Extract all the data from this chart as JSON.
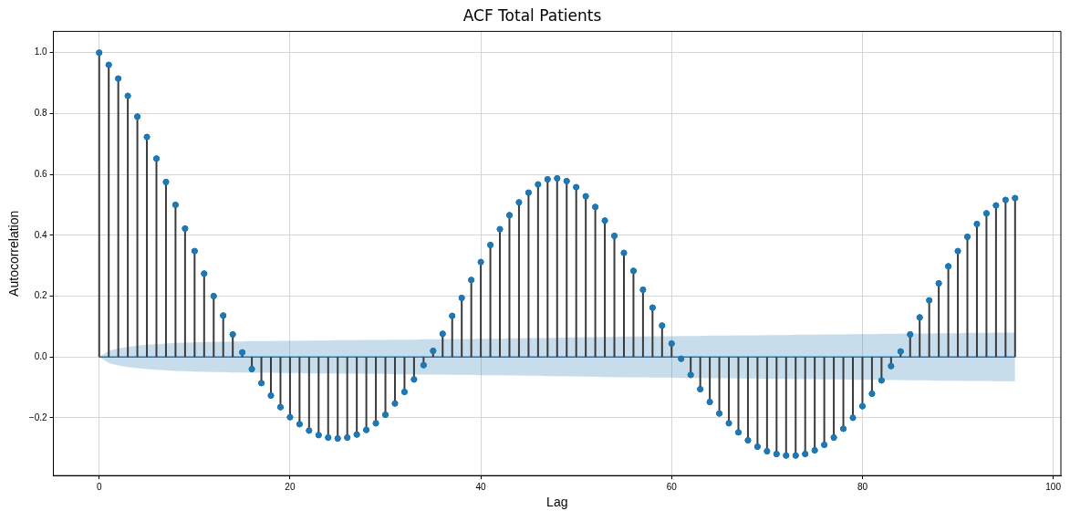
{
  "chart_data": {
    "type": "lollipop",
    "title": "ACF Total Patients",
    "xlabel": "Lag",
    "ylabel": "Autocorrelation",
    "x": [
      0,
      1,
      2,
      3,
      4,
      5,
      6,
      7,
      8,
      9,
      10,
      11,
      12,
      13,
      14,
      15,
      16,
      17,
      18,
      19,
      20,
      21,
      22,
      23,
      24,
      25,
      26,
      27,
      28,
      29,
      30,
      31,
      32,
      33,
      34,
      35,
      36,
      37,
      38,
      39,
      40,
      41,
      42,
      43,
      44,
      45,
      46,
      47,
      48,
      49,
      50,
      51,
      52,
      53,
      54,
      55,
      56,
      57,
      58,
      59,
      60,
      61,
      62,
      63,
      64,
      65,
      66,
      67,
      68,
      69,
      70,
      71,
      72,
      73,
      74,
      75,
      76,
      77,
      78,
      79,
      80,
      81,
      82,
      83,
      84,
      85,
      86,
      87,
      88,
      89,
      90,
      91,
      92,
      93,
      94,
      95,
      96
    ],
    "series": [
      {
        "color": "#1f77b4",
        "values": [
          1.0,
          0.96,
          0.915,
          0.858,
          0.79,
          0.723,
          0.652,
          0.575,
          0.5,
          0.422,
          0.348,
          0.274,
          0.2,
          0.136,
          0.074,
          0.015,
          -0.04,
          -0.086,
          -0.127,
          -0.165,
          -0.198,
          -0.221,
          -0.242,
          -0.257,
          -0.265,
          -0.268,
          -0.265,
          -0.255,
          -0.24,
          -0.218,
          -0.19,
          -0.153,
          -0.115,
          -0.074,
          -0.027,
          0.02,
          0.076,
          0.135,
          0.194,
          0.253,
          0.312,
          0.368,
          0.42,
          0.466,
          0.508,
          0.54,
          0.567,
          0.584,
          0.587,
          0.578,
          0.558,
          0.528,
          0.493,
          0.448,
          0.398,
          0.342,
          0.283,
          0.221,
          0.162,
          0.103,
          0.044,
          -0.006,
          -0.059,
          -0.106,
          -0.148,
          -0.186,
          -0.218,
          -0.248,
          -0.274,
          -0.295,
          -0.31,
          -0.319,
          -0.324,
          -0.324,
          -0.319,
          -0.307,
          -0.289,
          -0.265,
          -0.236,
          -0.2,
          -0.162,
          -0.121,
          -0.077,
          -0.03,
          0.018,
          0.074,
          0.13,
          0.186,
          0.242,
          0.298,
          0.348,
          0.395,
          0.437,
          0.472,
          0.498,
          0.516,
          0.522
        ]
      },
      {
        "type": "line",
        "marker": "none",
        "color": "#1f77b4",
        "values": [
          0,
          0,
          0,
          0,
          0,
          0,
          0,
          0,
          0,
          0,
          0,
          0,
          0,
          0,
          0,
          0,
          0,
          0,
          0,
          0,
          0,
          0,
          0,
          0,
          0,
          0,
          0,
          0,
          0,
          0,
          0,
          0,
          0,
          0,
          0,
          0,
          0,
          0,
          0,
          0,
          0,
          0,
          0,
          0,
          0,
          0,
          0,
          0,
          0,
          0,
          0,
          0,
          0,
          0,
          0,
          0,
          0,
          0,
          0,
          0,
          0,
          0,
          0,
          0,
          0,
          0,
          0,
          0,
          0,
          0,
          0,
          0,
          0,
          0,
          0,
          0,
          0,
          0,
          0,
          0,
          0,
          0,
          0,
          0,
          0,
          0,
          0,
          0,
          0,
          0,
          0,
          0,
          0,
          0,
          0,
          0,
          0
        ],
        "upper": [
          0,
          0.02,
          0.028,
          0.033,
          0.037,
          0.04,
          0.042,
          0.044,
          0.046,
          0.047,
          0.048,
          0.049,
          0.05,
          0.05,
          0.051,
          0.051,
          0.052,
          0.052,
          0.052,
          0.053,
          0.053,
          0.053,
          0.054,
          0.054,
          0.054,
          0.055,
          0.055,
          0.055,
          0.056,
          0.056,
          0.056,
          0.057,
          0.057,
          0.057,
          0.058,
          0.058,
          0.058,
          0.059,
          0.059,
          0.059,
          0.06,
          0.06,
          0.06,
          0.061,
          0.061,
          0.062,
          0.062,
          0.063,
          0.063,
          0.064,
          0.064,
          0.065,
          0.065,
          0.066,
          0.066,
          0.067,
          0.067,
          0.067,
          0.068,
          0.068,
          0.068,
          0.069,
          0.069,
          0.069,
          0.07,
          0.07,
          0.07,
          0.071,
          0.071,
          0.071,
          0.072,
          0.072,
          0.072,
          0.073,
          0.073,
          0.073,
          0.074,
          0.074,
          0.074,
          0.075,
          0.075,
          0.075,
          0.076,
          0.076,
          0.076,
          0.077,
          0.077,
          0.077,
          0.078,
          0.078,
          0.078,
          0.079,
          0.079,
          0.079,
          0.08,
          0.08,
          0.08
        ],
        "lower": [
          0,
          -0.02,
          -0.028,
          -0.033,
          -0.037,
          -0.04,
          -0.042,
          -0.044,
          -0.046,
          -0.047,
          -0.048,
          -0.049,
          -0.05,
          -0.05,
          -0.051,
          -0.051,
          -0.052,
          -0.052,
          -0.052,
          -0.053,
          -0.053,
          -0.053,
          -0.054,
          -0.054,
          -0.054,
          -0.055,
          -0.055,
          -0.055,
          -0.056,
          -0.056,
          -0.056,
          -0.057,
          -0.057,
          -0.057,
          -0.058,
          -0.058,
          -0.058,
          -0.059,
          -0.059,
          -0.059,
          -0.06,
          -0.06,
          -0.06,
          -0.061,
          -0.061,
          -0.062,
          -0.062,
          -0.063,
          -0.063,
          -0.064,
          -0.064,
          -0.065,
          -0.065,
          -0.066,
          -0.066,
          -0.067,
          -0.067,
          -0.067,
          -0.068,
          -0.068,
          -0.068,
          -0.069,
          -0.069,
          -0.069,
          -0.07,
          -0.07,
          -0.07,
          -0.071,
          -0.071,
          -0.071,
          -0.072,
          -0.072,
          -0.072,
          -0.073,
          -0.073,
          -0.073,
          -0.074,
          -0.074,
          -0.074,
          -0.075,
          -0.075,
          -0.075,
          -0.076,
          -0.076,
          -0.076,
          -0.077,
          -0.077,
          -0.077,
          -0.078,
          -0.078,
          -0.078,
          -0.079,
          -0.079,
          -0.079,
          -0.08,
          -0.08,
          -0.08
        ]
      }
    ],
    "xlim": [
      -4.8,
      100.8
    ],
    "xticks": [
      0,
      20,
      40,
      60,
      80,
      100
    ],
    "ylim": [
      -0.39,
      1.07
    ],
    "yticks": [
      {
        "value": -0.2,
        "label": "−0.2"
      },
      {
        "value": 0,
        "label": "0.0"
      },
      {
        "value": 0.2,
        "label": "0.2"
      },
      {
        "value": 0.4,
        "label": "0.4"
      },
      {
        "value": 0.6,
        "label": "0.6"
      },
      {
        "value": 0.8,
        "label": "0.8"
      },
      {
        "value": 1,
        "label": "1.0"
      }
    ],
    "grid": true,
    "legend": false,
    "marker": "circle"
  }
}
